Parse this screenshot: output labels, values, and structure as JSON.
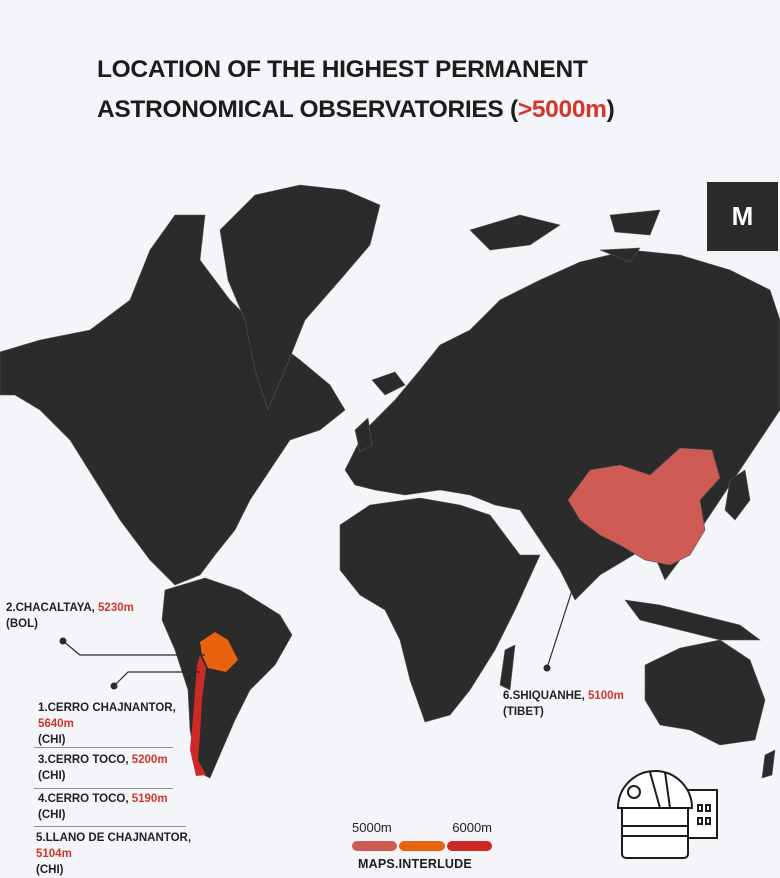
{
  "title": {
    "line1": "LOCATION OF THE HIGHEST PERMANENT",
    "line2_prefix": "ASTRONOMICAL OBSERVATORIES (",
    "line2_highlight": ">5000m",
    "line2_suffix": ")"
  },
  "logo": {
    "text": "M"
  },
  "colors": {
    "land": "#2b2b2b",
    "china": "#cf5b55",
    "bolivia": "#e8620f",
    "chile": "#cc2a26",
    "accent": "#d2362a",
    "background": "#f4f5f9"
  },
  "observatories": [
    {
      "name": "2.CHACALTAYA,",
      "height": "5230m",
      "country": "(BOL)"
    },
    {
      "name": "1.CERRO CHAJNANTOR,",
      "height": "5640m",
      "country": "(CHI)"
    },
    {
      "name": "3.CERRO TOCO,",
      "height": "5200m",
      "country": "(CHI)"
    },
    {
      "name": "4.CERRO TOCO,",
      "height": "5190m",
      "country": "(CHI)"
    },
    {
      "name": "5.LLANO DE CHAJNANTOR,",
      "height": "5104m",
      "country": "(CHI)"
    },
    {
      "name": "6.SHIQUANHE,",
      "height": "5100m",
      "country": "(TIBET)"
    }
  ],
  "legend": {
    "min_label": "5000m",
    "max_label": "6000m",
    "colors": [
      "#cf5b55",
      "#e8620f",
      "#cc2a26"
    ]
  },
  "brand": "MAPS.INTERLUDE",
  "icons": [
    "observatory-icon"
  ]
}
